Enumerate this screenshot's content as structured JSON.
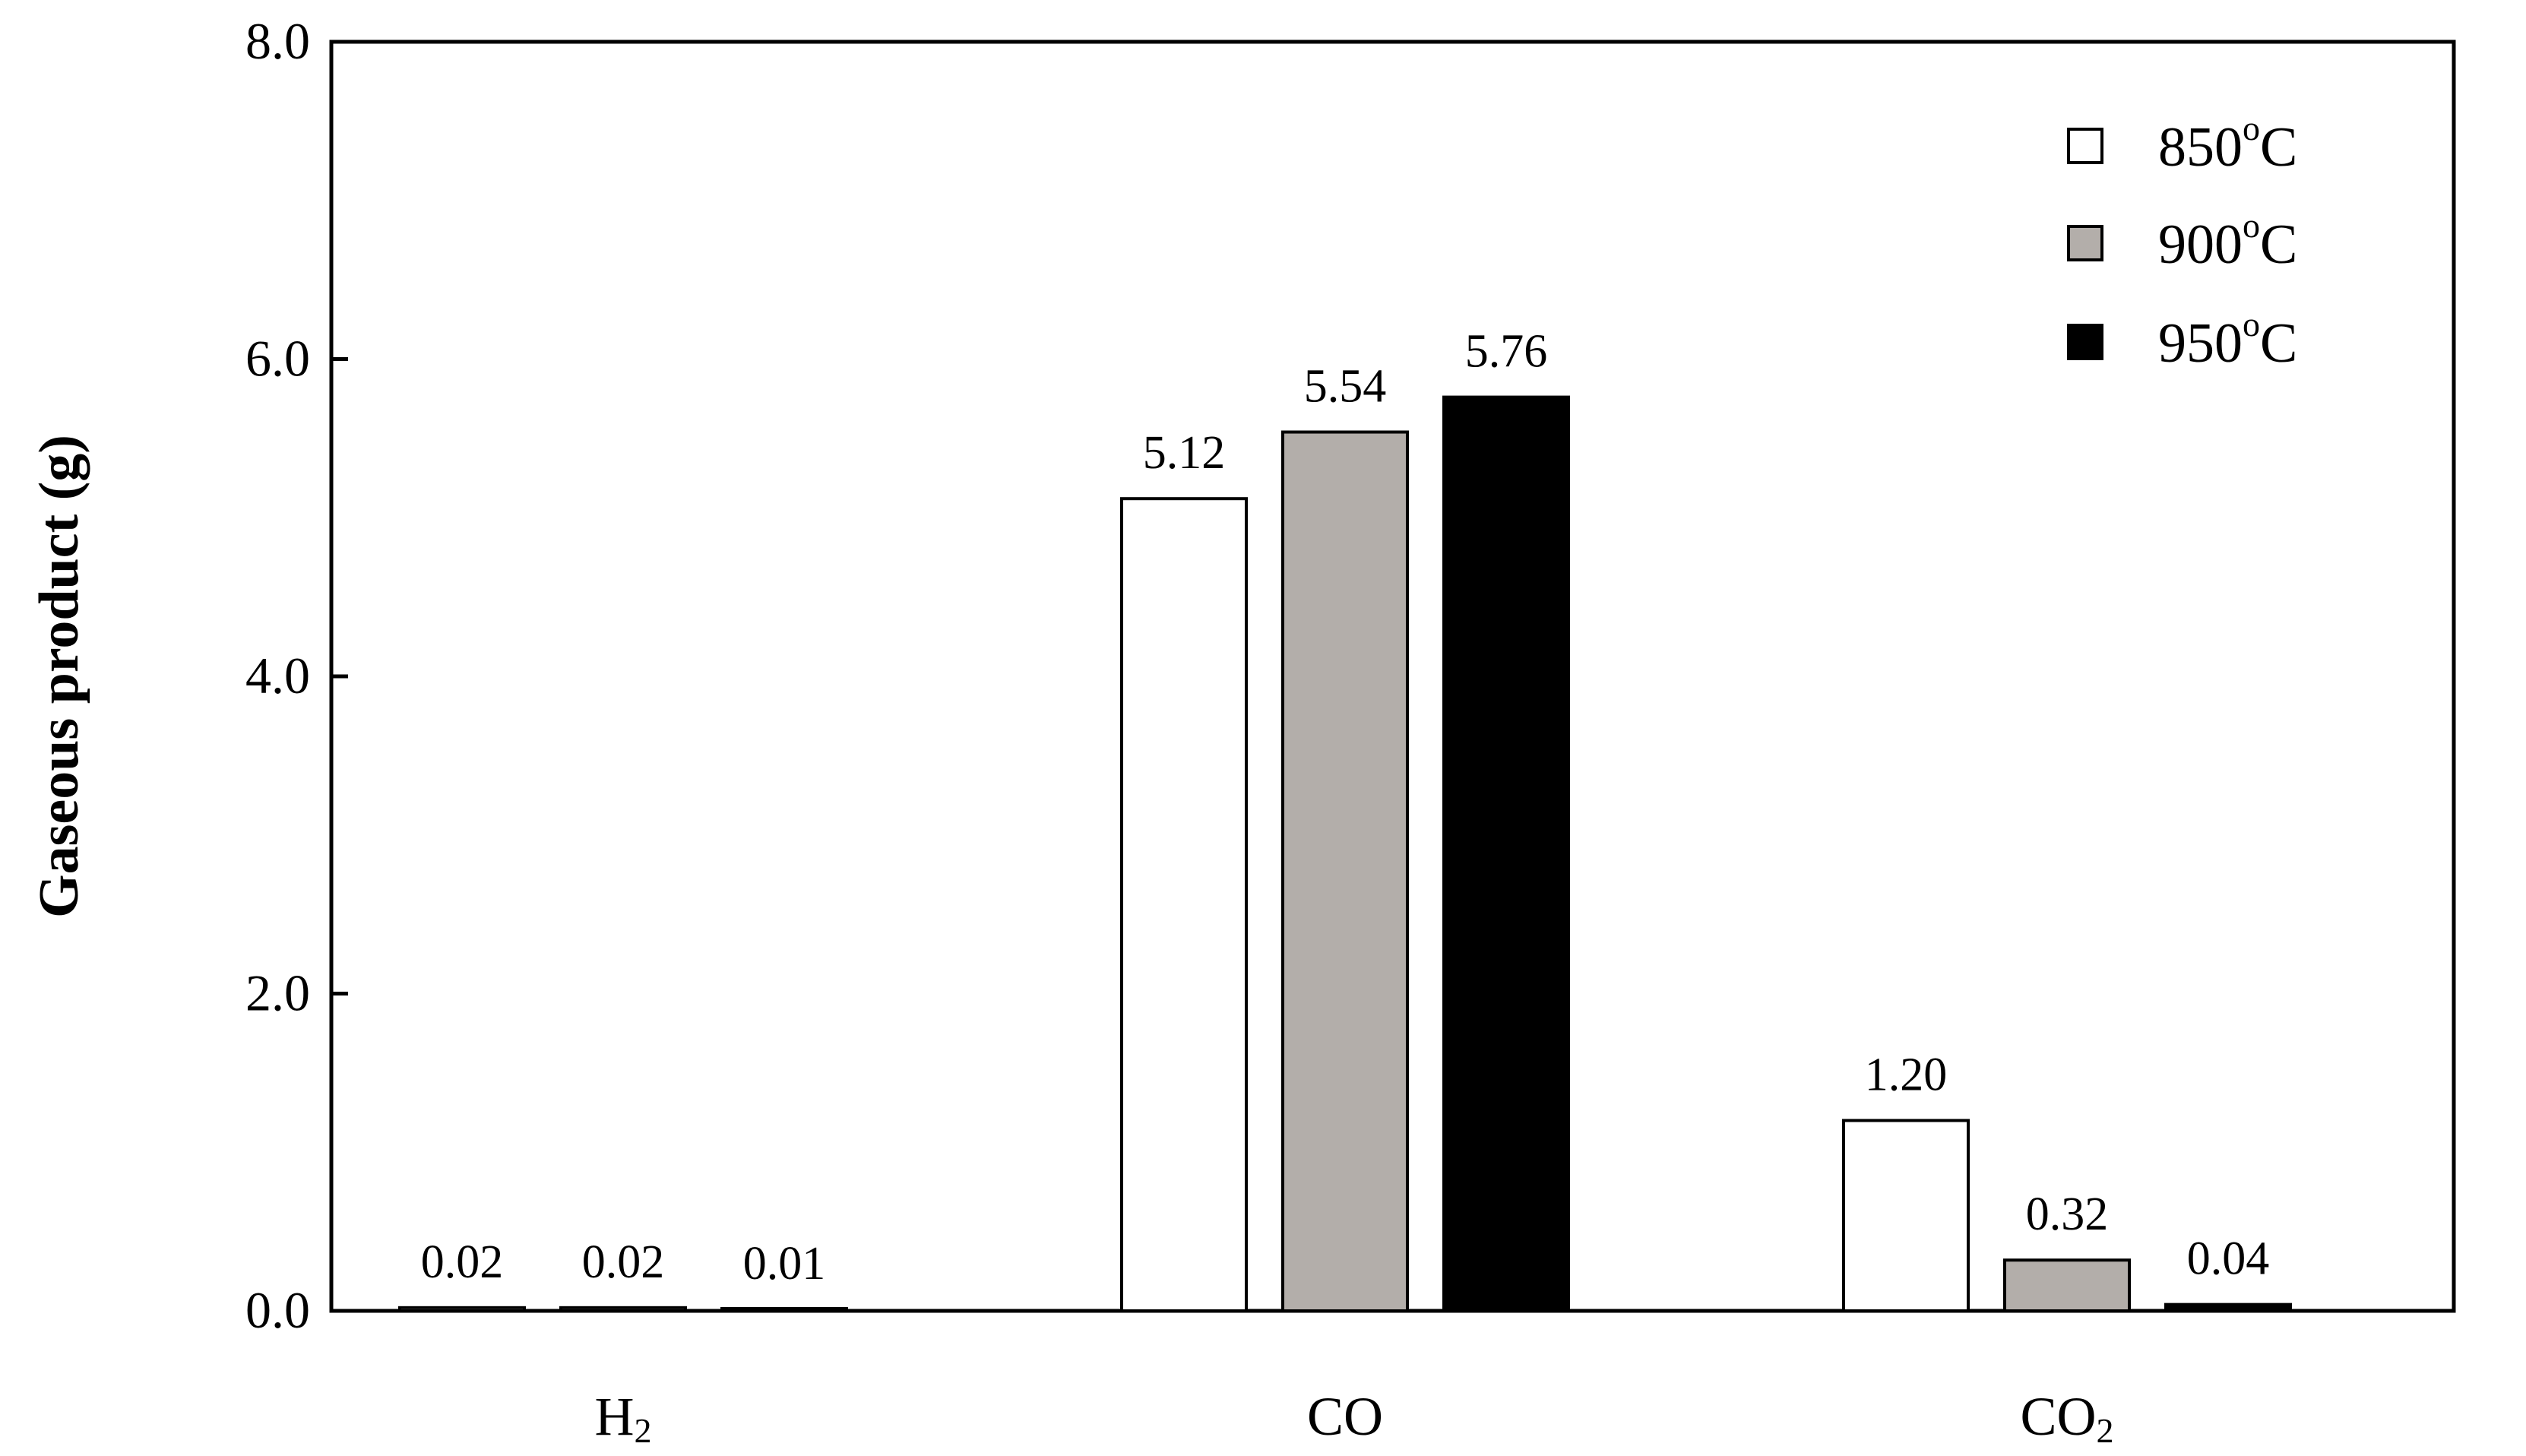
{
  "chart_data": {
    "type": "bar",
    "ylabel": "Gaseous product (g)",
    "xlabel": "",
    "ylim": [
      0,
      8
    ],
    "yticks": [
      "0.0",
      "2.0",
      "4.0",
      "6.0",
      "8.0"
    ],
    "categories": [
      {
        "base": "H",
        "sub": "2"
      },
      {
        "base": "CO",
        "sub": ""
      },
      {
        "base": "CO",
        "sub": "2"
      }
    ],
    "series": [
      {
        "name": "850oC",
        "label_main": "850",
        "label_sup": "o",
        "label_unit": "C",
        "color": "#ffffff",
        "values": [
          0.02,
          5.12,
          1.2
        ],
        "labels": [
          "0.02",
          "5.12",
          "1.20"
        ]
      },
      {
        "name": "900oC",
        "label_main": "900",
        "label_sup": "o",
        "label_unit": "C",
        "color": "#b3aeaa",
        "values": [
          0.02,
          5.54,
          0.32
        ],
        "labels": [
          "0.02",
          "5.54",
          "0.32"
        ]
      },
      {
        "name": "950oC",
        "label_main": "950",
        "label_sup": "o",
        "label_unit": "C",
        "color": "#000000",
        "values": [
          0.01,
          5.76,
          0.04
        ],
        "labels": [
          "0.01",
          "5.76",
          "0.04"
        ]
      }
    ],
    "legend_position": "top-right",
    "grid": false
  }
}
